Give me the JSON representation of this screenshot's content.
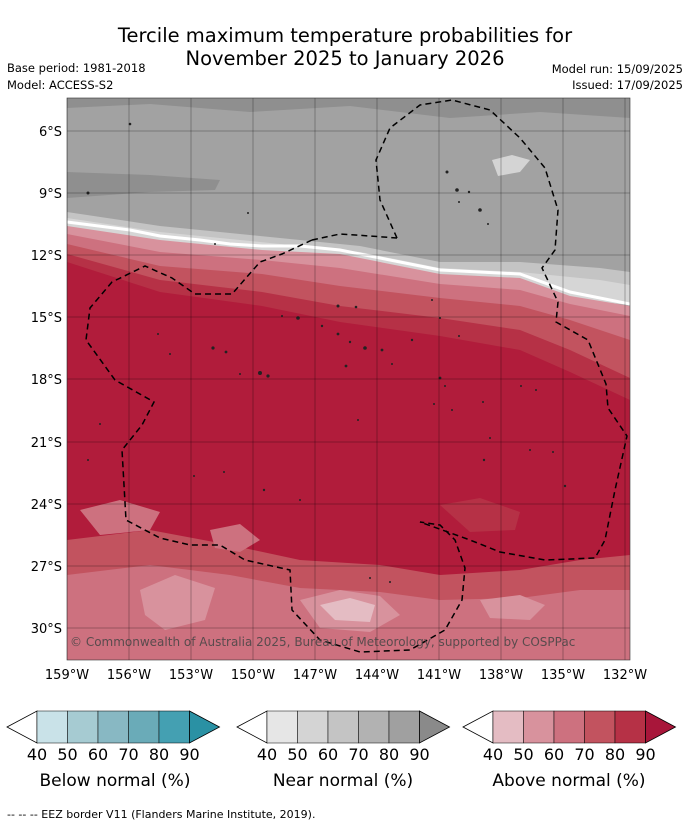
{
  "title_line1": "Tercile maximum temperature probabilities for",
  "title_line2": "November 2025 to January 2026",
  "base_period": "Base period: 1981-2018",
  "model": "Model: ACCESS-S2",
  "model_run": "Model run: 15/09/2025",
  "issued": "Issued: 17/09/2025",
  "copyright": "© Commonwealth of Australia 2025, Bureau of Meteorology, supported by COSPPac",
  "lat_labels": [
    "6°S",
    "9°S",
    "12°S",
    "15°S",
    "18°S",
    "21°S",
    "24°S",
    "27°S",
    "30°S"
  ],
  "lon_labels": [
    "159°W",
    "156°W",
    "153°W",
    "150°W",
    "147°W",
    "144°W",
    "141°W",
    "138°W",
    "135°W",
    "132°W"
  ],
  "colorbars": [
    {
      "title": "Below normal (%)",
      "ticks": [
        "40",
        "50",
        "60",
        "70",
        "80",
        "90"
      ],
      "colors": [
        "#ffffff",
        "#c9e2e8",
        "#a6cbd2",
        "#88b8c3",
        "#6aabb8",
        "#44a0b2",
        "#2a91a4"
      ]
    },
    {
      "title": "Near normal (%)",
      "ticks": [
        "40",
        "50",
        "60",
        "70",
        "80",
        "90"
      ],
      "colors": [
        "#ffffff",
        "#e6e6e6",
        "#d4d4d4",
        "#c4c4c4",
        "#b2b2b2",
        "#a0a0a0",
        "#8a8a8a"
      ]
    },
    {
      "title": "Above normal (%)",
      "ticks": [
        "40",
        "50",
        "60",
        "70",
        "80",
        "90"
      ],
      "colors": [
        "#ffffff",
        "#e4bcc3",
        "#d8929d",
        "#cd717f",
        "#c2535f",
        "#b63146",
        "#a8163a"
      ]
    }
  ],
  "footnote": "--  --  -- EEZ border V11 (Flanders Marine Institute, 2019)."
}
